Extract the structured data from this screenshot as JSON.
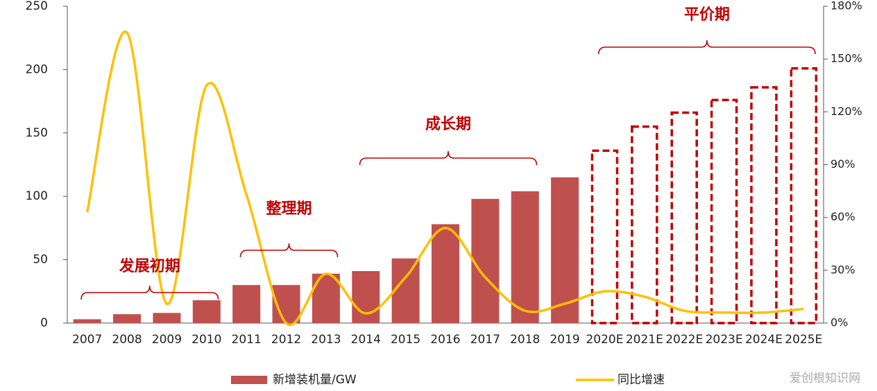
{
  "chart_data": {
    "type": "bar",
    "categories": [
      "2007",
      "2008",
      "2009",
      "2010",
      "2011",
      "2012",
      "2013",
      "2014",
      "2015",
      "2016",
      "2017",
      "2018",
      "2019",
      "2020E",
      "2021E",
      "2022E",
      "2023E",
      "2024E",
      "2025E"
    ],
    "series": [
      {
        "name": "新增装机量/GW",
        "type": "bar",
        "color": "#c0504d",
        "values": [
          3,
          7,
          8,
          18,
          30,
          30,
          39,
          41,
          51,
          78,
          98,
          104,
          115,
          136,
          155,
          166,
          176,
          186,
          201
        ]
      },
      {
        "name": "同比增速",
        "type": "line",
        "axis": "y2",
        "color": "#ffc000",
        "values": [
          63,
          165,
          11,
          135,
          73,
          0,
          28,
          5.5,
          26,
          54,
          26,
          7,
          11,
          18,
          15,
          7,
          6,
          6,
          8
        ]
      }
    ],
    "ylim": [
      0,
      250
    ],
    "yticks": [
      0,
      50,
      100,
      150,
      200,
      250
    ],
    "y2lim": [
      0,
      180
    ],
    "y2ticks": [
      {
        "value": 0,
        "label": "0%"
      },
      {
        "value": 30,
        "label": "30%"
      },
      {
        "value": 60,
        "label": "60%"
      },
      {
        "value": 90,
        "label": "90%"
      },
      {
        "value": 120,
        "label": "120%"
      },
      {
        "value": 150,
        "label": "150%"
      },
      {
        "value": 180,
        "label": "180%"
      }
    ],
    "annotations": [
      "发展初期",
      "整理期",
      "成长期",
      "平价期"
    ],
    "annotation_color": "#c00000",
    "watermark": "爱创根知识网"
  }
}
